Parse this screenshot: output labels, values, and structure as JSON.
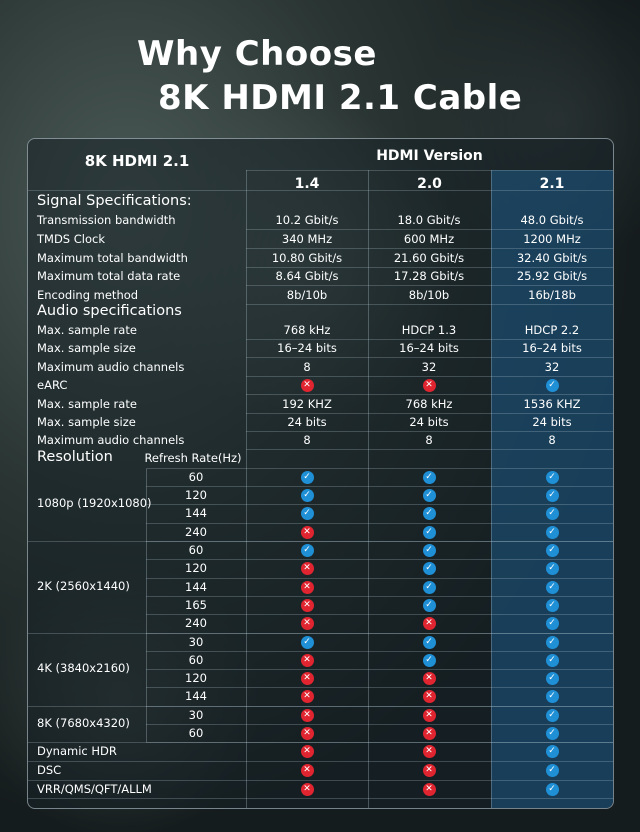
{
  "title": {
    "line1": "Why Choose",
    "line2": "8K HDMI 2.1 Cable"
  },
  "header": {
    "left": "8K HDMI 2.1",
    "version_title": "HDMI Version",
    "columns": [
      "1.4",
      "2.0",
      "2.1"
    ]
  },
  "signal": {
    "section": "Signal Specifications:",
    "rows": [
      {
        "label": "Transmission bandwidth",
        "v": [
          "10.2 Gbit/s",
          "18.0 Gbit/s",
          "48.0 Gbit/s"
        ]
      },
      {
        "label": "TMDS Clock",
        "v": [
          "340 MHz",
          "600 MHz",
          "1200 MHz"
        ]
      },
      {
        "label": "Maximum total bandwidth",
        "v": [
          "10.80 Gbit/s",
          "21.60 Gbit/s",
          "32.40 Gbit/s"
        ]
      },
      {
        "label": "Maximum total data rate",
        "v": [
          "8.64 Gbit/s",
          "17.28 Gbit/s",
          "25.92 Gbit/s"
        ]
      },
      {
        "label": "Encoding method",
        "v": [
          "8b/10b",
          "8b/10b",
          "16b/18b"
        ]
      }
    ]
  },
  "audio": {
    "section": "Audio specifications",
    "rows": [
      {
        "label": "Max. sample rate",
        "v": [
          "768 kHz",
          "HDCP 1.3",
          "HDCP 2.2"
        ]
      },
      {
        "label": "Max. sample size",
        "v": [
          "16–24 bits",
          "16–24 bits",
          "16–24 bits"
        ]
      },
      {
        "label": "Maximum audio channels",
        "v": [
          "8",
          "32",
          "32"
        ]
      },
      {
        "label": "eARC",
        "icons": [
          "no",
          "no",
          "ok"
        ]
      },
      {
        "label": "Max. sample rate",
        "v": [
          "192 KHZ",
          "768 kHz",
          "1536 KHZ"
        ]
      },
      {
        "label": "Max. sample size",
        "v": [
          "24 bits",
          "24 bits",
          "24 bits"
        ]
      },
      {
        "label": "Maximum audio channels",
        "v": [
          "8",
          "8",
          "8"
        ]
      }
    ]
  },
  "resolution": {
    "section": "Resolution",
    "refresh_header": "Refresh Rate(Hz)",
    "groups": [
      {
        "name": "1080p (1920x1080)",
        "rates": [
          {
            "hz": "60",
            "icons": [
              "ok",
              "ok",
              "ok"
            ]
          },
          {
            "hz": "120",
            "icons": [
              "ok",
              "ok",
              "ok"
            ]
          },
          {
            "hz": "144",
            "icons": [
              "ok",
              "ok",
              "ok"
            ]
          },
          {
            "hz": "240",
            "icons": [
              "no",
              "ok",
              "ok"
            ]
          }
        ]
      },
      {
        "name": "2K (2560x1440)",
        "rates": [
          {
            "hz": "60",
            "icons": [
              "ok",
              "ok",
              "ok"
            ]
          },
          {
            "hz": "120",
            "icons": [
              "no",
              "ok",
              "ok"
            ]
          },
          {
            "hz": "144",
            "icons": [
              "no",
              "ok",
              "ok"
            ]
          },
          {
            "hz": "165",
            "icons": [
              "no",
              "ok",
              "ok"
            ]
          },
          {
            "hz": "240",
            "icons": [
              "no",
              "no",
              "ok"
            ]
          }
        ]
      },
      {
        "name": "4K (3840x2160)",
        "rates": [
          {
            "hz": "30",
            "icons": [
              "ok",
              "ok",
              "ok"
            ]
          },
          {
            "hz": "60",
            "icons": [
              "no",
              "ok",
              "ok"
            ]
          },
          {
            "hz": "120",
            "icons": [
              "no",
              "no",
              "ok"
            ]
          },
          {
            "hz": "144",
            "icons": [
              "no",
              "no",
              "ok"
            ]
          }
        ]
      },
      {
        "name": "8K (7680x4320)",
        "rates": [
          {
            "hz": "30",
            "icons": [
              "no",
              "no",
              "ok"
            ]
          },
          {
            "hz": "60",
            "icons": [
              "no",
              "no",
              "ok"
            ]
          }
        ]
      }
    ]
  },
  "features": [
    {
      "label": "Dynamic HDR",
      "icons": [
        "no",
        "no",
        "ok"
      ]
    },
    {
      "label": "DSC",
      "icons": [
        "no",
        "no",
        "ok"
      ]
    },
    {
      "label": "VRR/QMS/QFT/ALLM",
      "icons": [
        "no",
        "no",
        "ok"
      ]
    }
  ],
  "icon_names": {
    "ok": "check-circle-icon",
    "no": "cross-circle-icon"
  },
  "colors": {
    "ok": "#1f8fd6",
    "no": "#e02530",
    "highlight": "#1e5a87"
  }
}
